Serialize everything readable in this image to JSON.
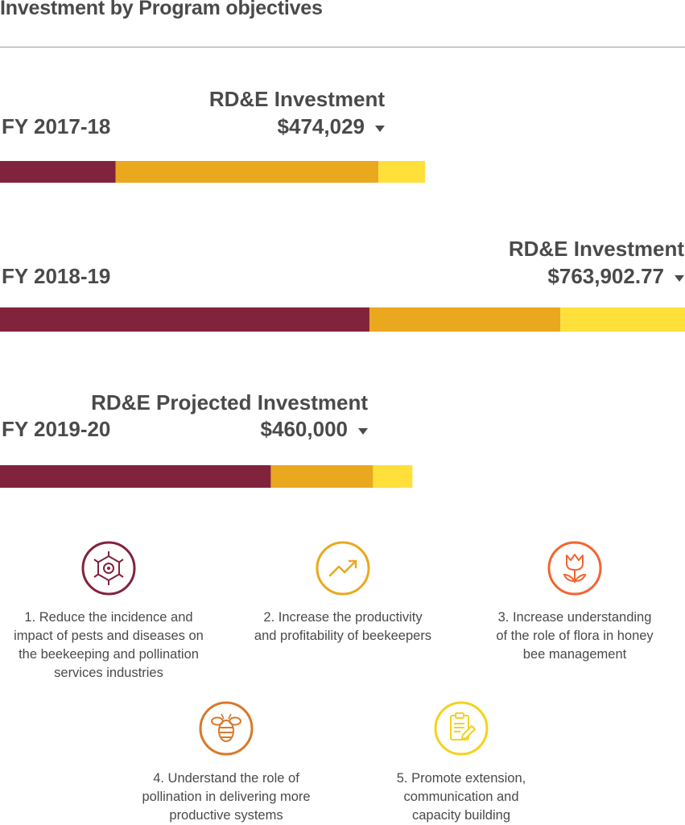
{
  "title": "Investment by Program objectives",
  "colors": {
    "objective_1": "#82233d",
    "objective_2": "#eaa81e",
    "objective_3": "#ffe03b",
    "objective_3_icon": "#f26531",
    "objective_4_icon": "#d9792a",
    "objective_5_icon": "#f3d21f",
    "text": "#4a4a4a"
  },
  "chart_data": [
    {
      "type": "bar",
      "orientation": "horizontal-stacked",
      "category": "FY 2017-18",
      "heading": "RD&E Investment",
      "total_label": "$474,029",
      "total": 474029,
      "series": [
        {
          "name": "1",
          "value": 129000
        },
        {
          "name": "2",
          "value": 293000
        },
        {
          "name": "3",
          "value": 52029
        }
      ]
    },
    {
      "type": "bar",
      "orientation": "horizontal-stacked",
      "category": "FY 2018-19",
      "heading": "RD&E Investment",
      "total_label": "$763,902.77",
      "total": 763902.77,
      "series": [
        {
          "name": "1",
          "value": 412000
        },
        {
          "name": "2",
          "value": 213000
        },
        {
          "name": "3",
          "value": 138902.77
        }
      ]
    },
    {
      "type": "bar",
      "orientation": "horizontal-stacked",
      "category": "FY 2019-20",
      "heading": "RD&E Projected Investment",
      "total_label": "$460,000",
      "total": 460000,
      "series": [
        {
          "name": "1",
          "value": 302000
        },
        {
          "name": "2",
          "value": 114000
        },
        {
          "name": "3",
          "value": 44000
        }
      ]
    }
  ],
  "objectives": [
    {
      "icon": "virus-cell-icon",
      "text": [
        "1. Reduce the incidence and",
        "impact of pests and diseases on",
        "the beekeeping and pollination",
        "services industries"
      ]
    },
    {
      "icon": "trend-up-arrow-icon",
      "text": [
        "2. Increase the productivity",
        "and profitability of beekeepers"
      ]
    },
    {
      "icon": "tulip-flower-icon",
      "text": [
        "3. Increase understanding",
        "of the role of flora in honey",
        "bee management"
      ]
    },
    {
      "icon": "bee-icon",
      "text": [
        "4. Understand the role of",
        "pollination in delivering more",
        "productive systems"
      ]
    },
    {
      "icon": "clipboard-pencil-icon",
      "text": [
        "5. Promote extension,",
        "communication and",
        "capacity building"
      ]
    }
  ]
}
